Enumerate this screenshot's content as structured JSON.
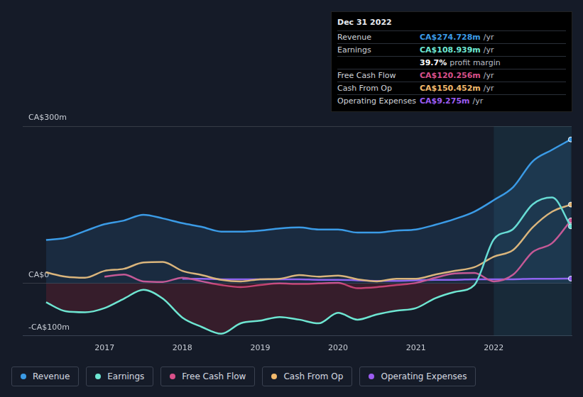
{
  "chart_data": {
    "type": "line",
    "x": [
      2016.25,
      2016.5,
      2016.75,
      2017.0,
      2017.25,
      2017.5,
      2017.75,
      2018.0,
      2018.25,
      2018.5,
      2018.75,
      2019.0,
      2019.25,
      2019.5,
      2019.75,
      2020.0,
      2020.25,
      2020.5,
      2020.75,
      2021.0,
      2021.25,
      2021.5,
      2021.75,
      2022.0,
      2022.25,
      2022.5,
      2022.75,
      2022.99
    ],
    "series": [
      {
        "name": "Revenue",
        "color": "#3b9be6",
        "values": [
          83,
          87,
          100,
          113,
          120,
          131,
          124,
          115,
          108,
          99,
          99,
          101,
          105,
          107,
          103,
          103,
          97,
          97,
          101,
          103,
          112,
          123,
          137,
          159,
          184,
          233,
          255,
          274.728
        ]
      },
      {
        "name": "Earnings",
        "color": "#6ee6d2",
        "values": [
          -36,
          -53,
          -55,
          -47,
          -29,
          -12,
          -29,
          -65,
          -83,
          -96,
          -76,
          -71,
          -64,
          -69,
          -76,
          -56,
          -69,
          -59,
          -52,
          -47,
          -28,
          -16,
          -3,
          84,
          104,
          151,
          164,
          108.939
        ]
      },
      {
        "name": "Free Cash Flow",
        "color": "#d9508a",
        "values": [
          null,
          null,
          null,
          13,
          17,
          4,
          3,
          11,
          4,
          -3,
          -7,
          -3,
          0,
          -1,
          0,
          1,
          -9,
          -7,
          -3,
          1,
          11,
          19,
          20,
          4,
          17,
          60,
          77,
          120.256
        ]
      },
      {
        "name": "Cash From Op",
        "color": "#f2b96c",
        "values": [
          21,
          13,
          11,
          24,
          28,
          40,
          41,
          24,
          16,
          7,
          4,
          8,
          9,
          16,
          13,
          15,
          8,
          4,
          9,
          9,
          17,
          24,
          31,
          51,
          64,
          107,
          137,
          150.452
        ]
      },
      {
        "name": "Operating Expenses",
        "color": "#9c5cf2",
        "values": [
          null,
          null,
          null,
          null,
          null,
          null,
          null,
          9,
          9,
          8,
          8,
          8,
          8,
          8,
          7,
          7,
          6,
          5,
          5,
          6,
          7,
          7,
          8,
          8,
          8,
          9,
          9,
          9.275
        ]
      }
    ],
    "xlim": [
      2015.95,
      2023.0
    ],
    "xticks": [
      2017,
      2018,
      2019,
      2020,
      2021,
      2022
    ],
    "ylim": [
      -100,
      300
    ],
    "yticks": [
      {
        "value": -100,
        "label": "-CA$100m"
      },
      {
        "value": 0,
        "label": "CA$0"
      },
      {
        "value": 300,
        "label": "CA$300m"
      }
    ],
    "grid": true,
    "legend": "bottom left",
    "shaded_range": [
      2022.0,
      2023.0
    ],
    "info_box": {
      "title": "Dec 31 2022",
      "rows": [
        {
          "label": "Revenue",
          "value": "CA$274.728m",
          "unit": "/yr",
          "color": "#3b9be6"
        },
        {
          "label": "Earnings",
          "value": "CA$108.939m",
          "unit": "/yr",
          "color": "#6ee6d2"
        },
        {
          "value": "39.7%",
          "unit": "profit margin",
          "color": "#ffffff"
        },
        {
          "label": "Free Cash Flow",
          "value": "CA$120.256m",
          "unit": "/yr",
          "color": "#d9508a"
        },
        {
          "label": "Cash From Op",
          "value": "CA$150.452m",
          "unit": "/yr",
          "color": "#f2b96c"
        },
        {
          "label": "Operating Expenses",
          "value": "CA$9.275m",
          "unit": "/yr",
          "color": "#9c5cf2"
        }
      ]
    }
  }
}
